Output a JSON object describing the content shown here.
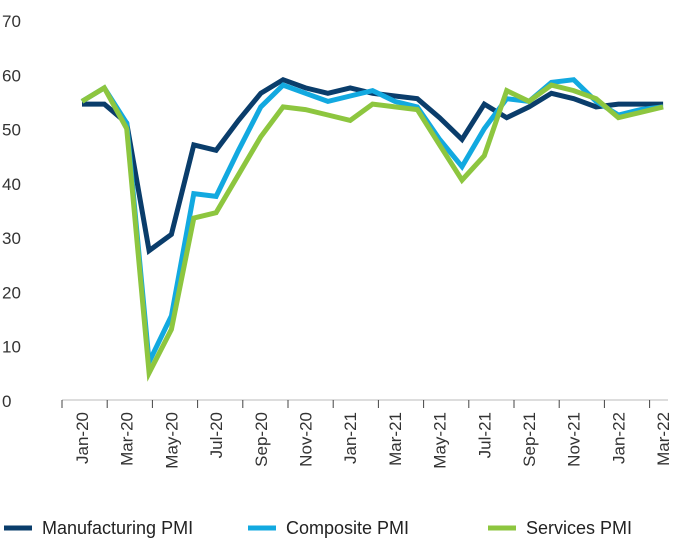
{
  "chart_data": {
    "type": "line",
    "title": "",
    "xlabel": "",
    "ylabel": "",
    "ylim": [
      0,
      70
    ],
    "yticks": [
      "0",
      "10",
      "20",
      "30",
      "40",
      "50",
      "60",
      "70"
    ],
    "x": [
      "Jan-20",
      "Feb-20",
      "Mar-20",
      "Apr-20",
      "May-20",
      "Jun-20",
      "Jul-20",
      "Aug-20",
      "Sep-20",
      "Oct-20",
      "Nov-20",
      "Dec-20",
      "Jan-21",
      "Feb-21",
      "Mar-21",
      "Apr-21",
      "May-21",
      "Jun-21",
      "Jul-21",
      "Aug-21",
      "Sep-21",
      "Oct-21",
      "Nov-21",
      "Dec-21",
      "Jan-22",
      "Feb-22",
      "Mar-22"
    ],
    "xtick_labels": [
      "Jan-20",
      "Mar-20",
      "May-20",
      "Jul-20",
      "Sep-20",
      "Nov-20",
      "Jan-21",
      "Mar-21",
      "May-21",
      "Jul-21",
      "Sep-21",
      "Nov-21",
      "Jan-22",
      "Mar-22"
    ],
    "legend_position": "bottom",
    "grid": false,
    "series": [
      {
        "name": "Manufacturing PMI",
        "color": "#0a3d6b",
        "values": [
          54.5,
          54.5,
          51,
          27.5,
          30.5,
          47,
          46,
          51.5,
          56.5,
          59,
          57.5,
          56.5,
          57.5,
          56.5,
          56,
          55.5,
          52,
          48,
          54.5,
          52,
          54,
          56.5,
          55.5,
          54,
          54.5,
          54.5,
          54.5
        ]
      },
      {
        "name": "Composite PMI",
        "color": "#12a9e0",
        "values": [
          55,
          57.5,
          51,
          7,
          15.5,
          38,
          37.5,
          46,
          54,
          58,
          56.5,
          55,
          56,
          57,
          55,
          54,
          48,
          43,
          50,
          55.5,
          55,
          58.5,
          59,
          55,
          52.5,
          53.5,
          54
        ]
      },
      {
        "name": "Services PMI",
        "color": "#8dc63f",
        "values": [
          55,
          57.5,
          50,
          5,
          13,
          33.5,
          34.5,
          41.5,
          48.5,
          54,
          53.5,
          52.5,
          51.5,
          54.5,
          54,
          53.5,
          47,
          40.5,
          45,
          57,
          55,
          58,
          57,
          55.5,
          52,
          53,
          54
        ]
      }
    ]
  }
}
